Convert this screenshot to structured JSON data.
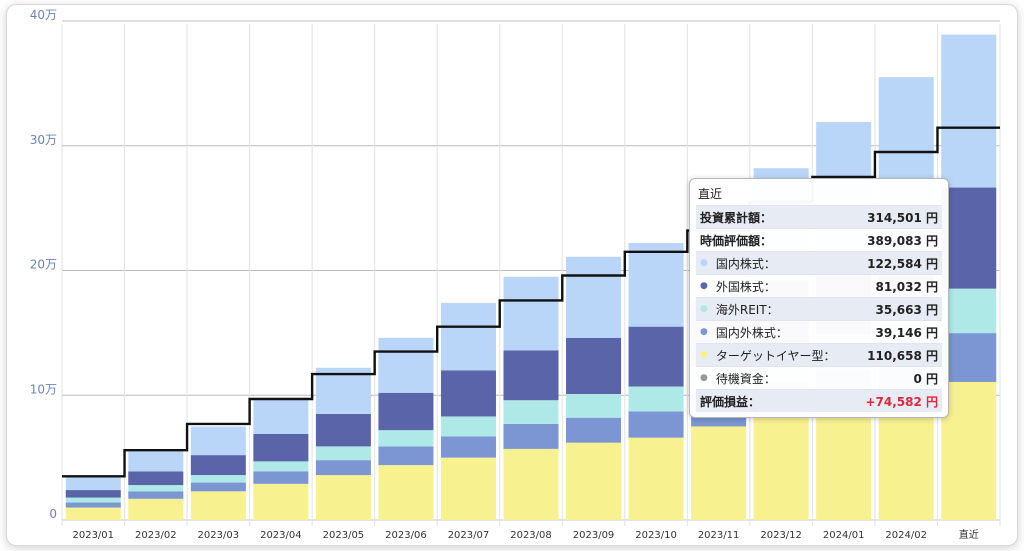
{
  "chart_data": {
    "type": "bar",
    "stacked": true,
    "categories": [
      "2023/01",
      "2023/02",
      "2023/03",
      "2023/04",
      "2023/05",
      "2023/06",
      "2023/07",
      "2023/08",
      "2023/09",
      "2023/10",
      "2023/11",
      "2023/12",
      "2024/01",
      "2024/02",
      "直近"
    ],
    "y_ticks": [
      {
        "value": 0,
        "label": "0"
      },
      {
        "value": 100000,
        "label": "10万"
      },
      {
        "value": 200000,
        "label": "20万"
      },
      {
        "value": 300000,
        "label": "30万"
      },
      {
        "value": 400000,
        "label": "40万"
      }
    ],
    "ylim": [
      0,
      400000
    ],
    "grid": true,
    "series": [
      {
        "name": "ターゲットイヤー型",
        "color": "#f8f190",
        "values": [
          10000,
          17000,
          23000,
          29000,
          36000,
          44000,
          50000,
          57000,
          62000,
          66000,
          75000,
          82000,
          90000,
          97000,
          110658
        ]
      },
      {
        "name": "国内外株式",
        "color": "#7b96d2",
        "values": [
          4000,
          6000,
          7000,
          10000,
          12000,
          15000,
          17000,
          20000,
          20000,
          21000,
          25000,
          28000,
          30000,
          34000,
          39146
        ]
      },
      {
        "name": "海外REIT",
        "color": "#aee9e8",
        "values": [
          4000,
          5000,
          6000,
          8000,
          11000,
          13000,
          16000,
          19000,
          19000,
          20000,
          23000,
          25000,
          28000,
          31000,
          35663
        ]
      },
      {
        "name": "外国株式",
        "color": "#5a65a9",
        "values": [
          6000,
          11000,
          16000,
          22000,
          26000,
          30000,
          37000,
          40000,
          45000,
          48000,
          52000,
          57000,
          63000,
          70000,
          81032
        ]
      },
      {
        "name": "国内株式",
        "color": "#b9d6f9",
        "values": [
          10000,
          16000,
          23000,
          29000,
          37000,
          44000,
          54000,
          59000,
          65000,
          67000,
          75000,
          90000,
          108000,
          123000,
          122584
        ]
      }
    ],
    "line": {
      "name": "投資累計額",
      "color": "#111111",
      "values": [
        35000,
        56000,
        77000,
        97000,
        117000,
        135000,
        155000,
        176000,
        196000,
        215000,
        232000,
        255000,
        275000,
        295000,
        314501
      ]
    }
  },
  "tooltip": {
    "title": "直近",
    "rows": [
      {
        "label": "投資累計額：",
        "value": "314,501 円"
      },
      {
        "label": "時価評価額：",
        "value": "389,083 円"
      },
      {
        "label": "国内株式：",
        "value": "122,584 円",
        "color": "#b9d6f9"
      },
      {
        "label": "外国株式：",
        "value": "81,032 円",
        "color": "#5a65a9"
      },
      {
        "label": "海外REIT：",
        "value": "35,663 円",
        "color": "#aee9e8"
      },
      {
        "label": "国内外株式：",
        "value": "39,146 円",
        "color": "#7b96d2"
      },
      {
        "label": "ターゲットイヤー型：",
        "value": "110,658 円",
        "color": "#f8f190"
      },
      {
        "label": "待機資金：",
        "value": "0 円",
        "color": "#999999"
      },
      {
        "label": "評価損益：",
        "value": "+74,582 円"
      }
    ]
  }
}
